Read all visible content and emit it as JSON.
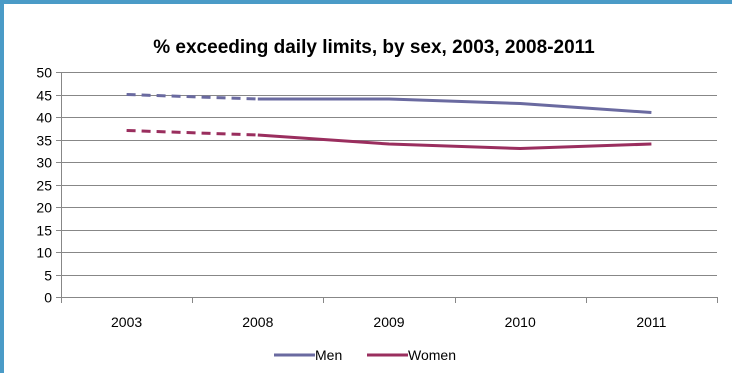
{
  "chart_data": {
    "type": "line",
    "title": "% exceeding daily limits, by sex, 2003, 2008-2011",
    "categories": [
      "2003",
      "2008",
      "2009",
      "2010",
      "2011"
    ],
    "series": [
      {
        "name": "Men",
        "values": [
          45,
          44,
          44,
          43,
          41
        ],
        "color": "#6a6aa0"
      },
      {
        "name": "Women",
        "values": [
          37,
          36,
          34,
          33,
          34
        ],
        "color": "#9a2e5e"
      }
    ],
    "dashed_segment": [
      "2003",
      "2008"
    ],
    "ylim": [
      0,
      50
    ],
    "yticks": [
      "0",
      "5",
      "10",
      "15",
      "20",
      "25",
      "30",
      "35",
      "40",
      "45",
      "50"
    ],
    "grid": true,
    "legend": "bottom"
  },
  "colors": {
    "frame": "#4a9bc7",
    "gridline": "#878787"
  }
}
